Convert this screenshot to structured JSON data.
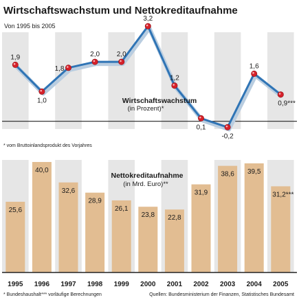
{
  "title": "Wirtschaftswachstum und Nettokreditaufnahme",
  "subtitle": "Von 1995 bis 2005",
  "footnote_top": "* vom Bruttoinlandsprodukt des Vorjahres",
  "footnote_bottom_left_1": "* Bundeshaushalt",
  "footnote_bottom_left_2": "*** vorläufige Berechnungen",
  "source": "Quellen: Bundesministerium der Finanzen, Statistisches Bundesamt",
  "colors": {
    "panel_bg": "#e6e6e6",
    "line": "#2f74b5",
    "line_shadow": "#b9cde0",
    "dot": "#d6212a",
    "bar": "#e2bd92",
    "axis": "#222222"
  },
  "chart_data": [
    {
      "type": "line",
      "title": "Wirtschaftswachstum",
      "unit_label": "(in Prozent)*",
      "categories": [
        "1995",
        "1996",
        "1997",
        "1998",
        "1999",
        "2000",
        "2001",
        "2002",
        "2003",
        "2004",
        "2005"
      ],
      "values": [
        1.9,
        1.0,
        1.8,
        2.0,
        2.0,
        3.2,
        1.2,
        0.1,
        -0.2,
        1.6,
        0.9
      ],
      "value_labels": [
        "1,9",
        "1,0",
        "1,8",
        "2,0",
        "2,0",
        "3,2",
        "1,2",
        "0,1",
        "-0,2",
        "1,6",
        "0,9***"
      ],
      "ylim": [
        -0.5,
        3.5
      ]
    },
    {
      "type": "bar",
      "title": "Nettokreditaufnahme",
      "unit_label": "(in Mrd. Euro)**",
      "categories": [
        "1995",
        "1996",
        "1997",
        "1998",
        "1999",
        "2000",
        "2001",
        "2002",
        "2003",
        "2004",
        "2005"
      ],
      "values": [
        25.6,
        40.0,
        32.6,
        28.9,
        26.1,
        23.8,
        22.8,
        31.9,
        38.6,
        39.5,
        31.2
      ],
      "value_labels": [
        "25,6",
        "40,0",
        "32,6",
        "28,9",
        "26,1",
        "23,8",
        "22,8",
        "31,9",
        "38,6",
        "39,5",
        "31,2***"
      ],
      "ylim": [
        0,
        40
      ]
    }
  ]
}
